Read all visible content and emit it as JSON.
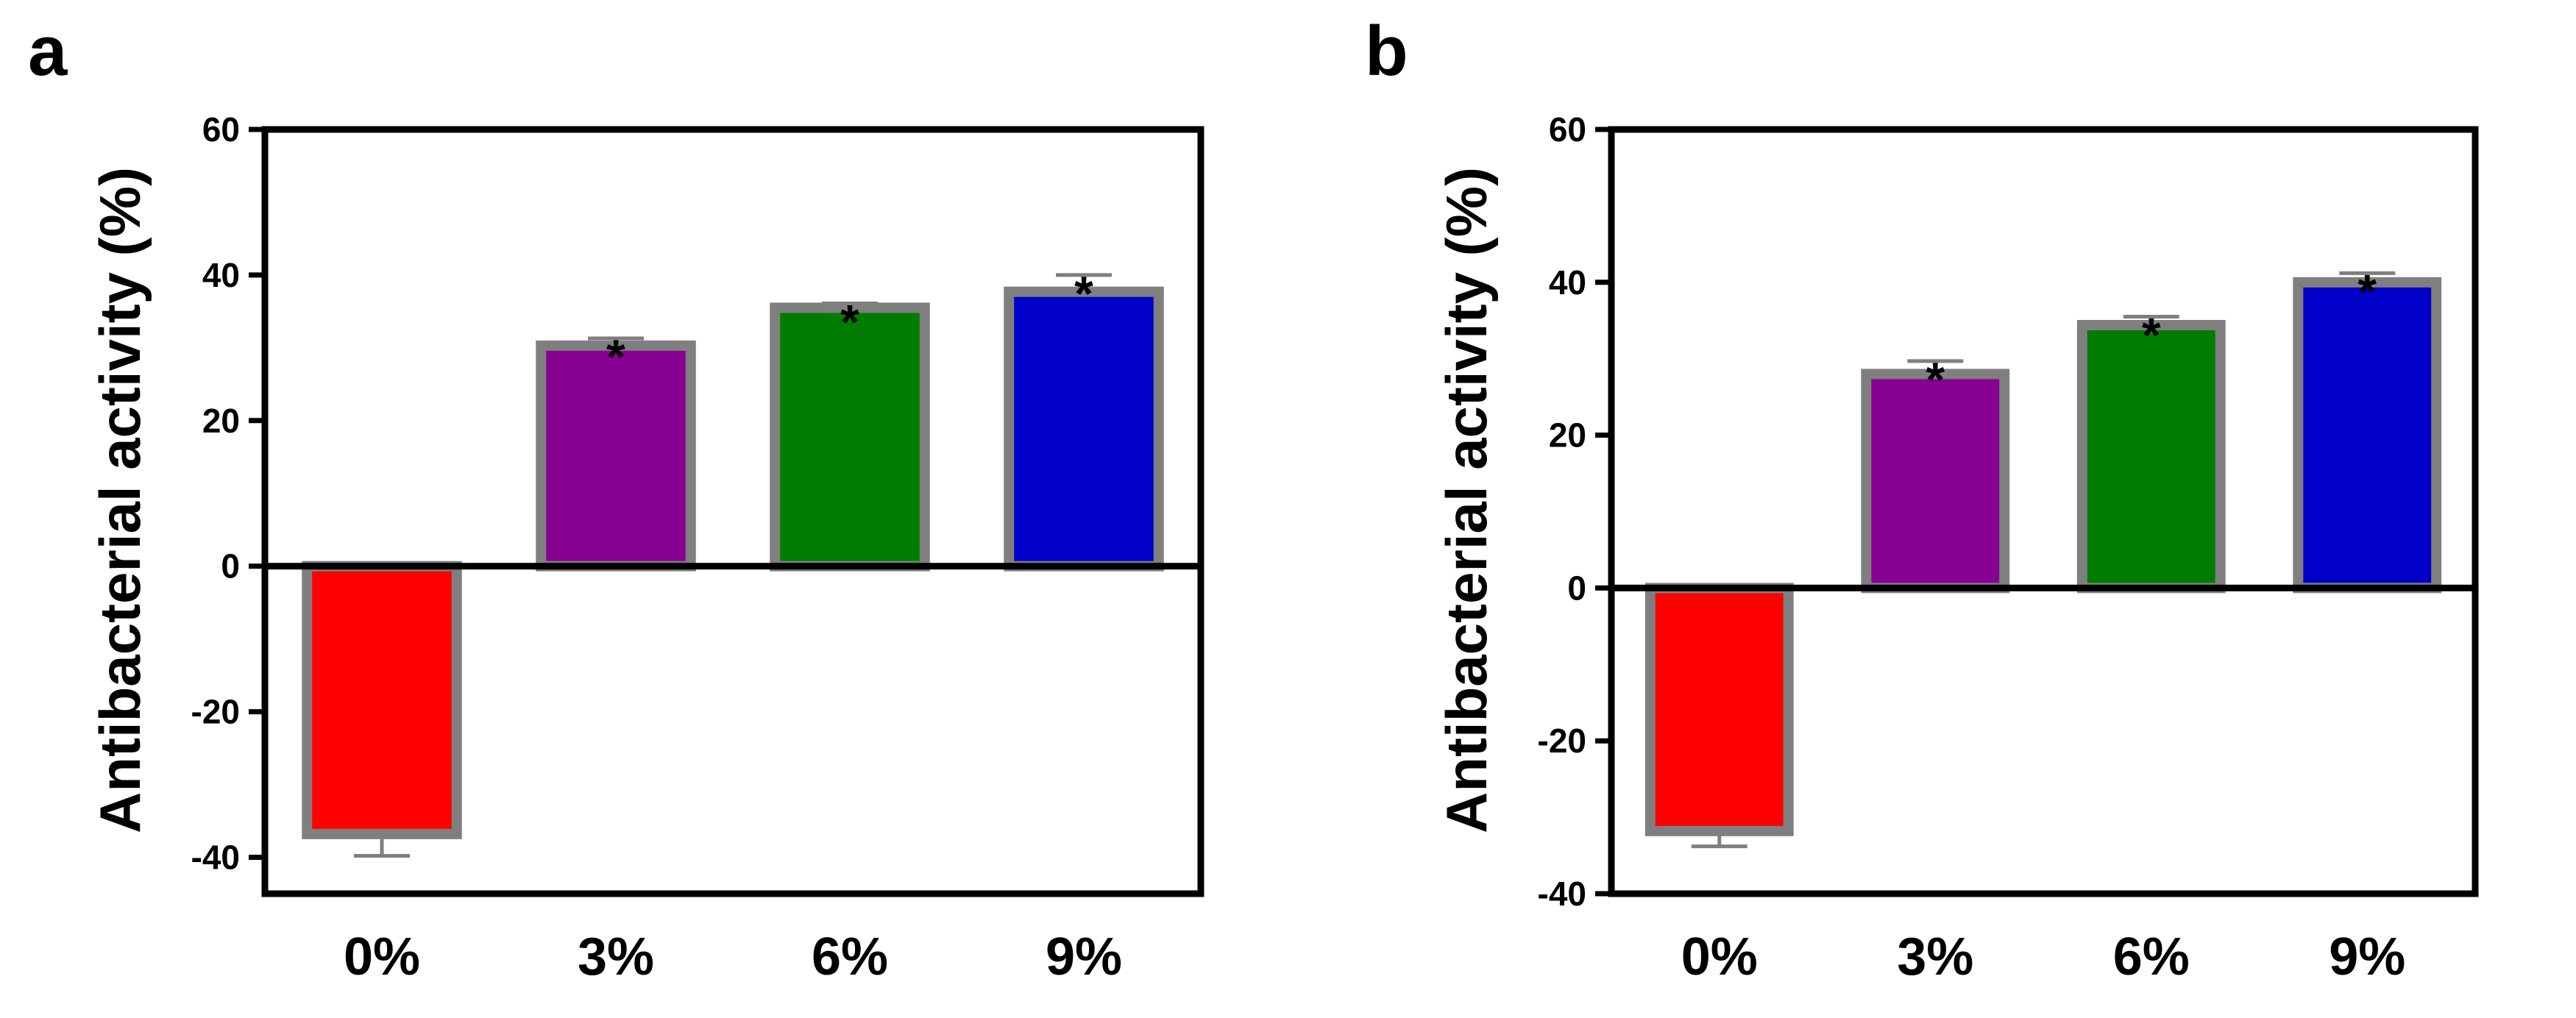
{
  "figure": {
    "panels": [
      "a",
      "b"
    ]
  },
  "colors": {
    "axis": "#000000",
    "bar_edge": "#7f7f7f",
    "error_bar": "#7f7f7f",
    "bar_fills": [
      "#ff0000",
      "#880092",
      "#007d00",
      "#0000c8"
    ]
  },
  "chart_data": [
    {
      "panel_label": "a",
      "type": "bar",
      "title": "",
      "xlabel": "",
      "ylabel": "Antibacterial activity (%)",
      "ylim": [
        -45,
        60
      ],
      "yticks": [
        -40,
        -20,
        0,
        20,
        40,
        60
      ],
      "ytick_labels": [
        "-40",
        "-20",
        "0",
        "20",
        "40",
        "60"
      ],
      "categories": [
        "0%",
        "3%",
        "6%",
        "9%"
      ],
      "values": [
        -36.8,
        30.3,
        35.5,
        37.7
      ],
      "errors": [
        3.0,
        1.0,
        0.6,
        2.3
      ],
      "significance": [
        "",
        "*",
        "*",
        "*"
      ],
      "grid": false
    },
    {
      "panel_label": "b",
      "type": "bar",
      "title": "",
      "xlabel": "",
      "ylabel": "Antibacterial activity (%)",
      "ylim": [
        -40,
        60
      ],
      "yticks": [
        -40,
        -20,
        0,
        20,
        40,
        60
      ],
      "ytick_labels": [
        "-40",
        "-20",
        "0",
        "20",
        "40",
        "60"
      ],
      "categories": [
        "0%",
        "3%",
        "6%",
        "9%"
      ],
      "values": [
        -31.8,
        28.0,
        34.4,
        40.0
      ],
      "errors": [
        2.0,
        1.7,
        1.1,
        1.2
      ],
      "significance": [
        "",
        "*",
        "*",
        "*"
      ],
      "grid": false
    }
  ]
}
